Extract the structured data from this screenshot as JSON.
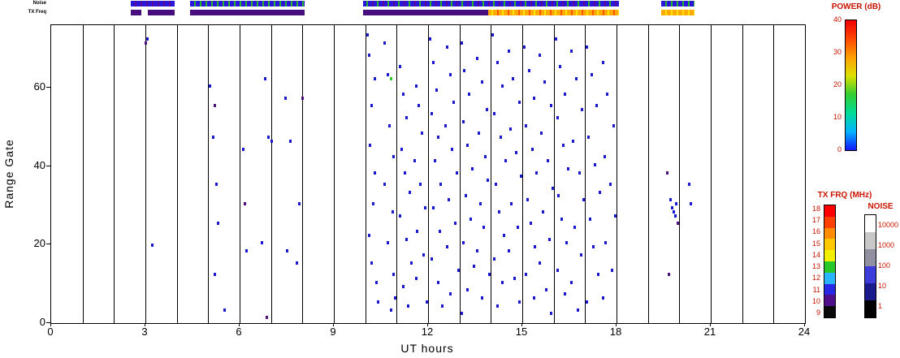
{
  "chart_data": {
    "type": "scatter",
    "title": "",
    "xlabel": "UT hours",
    "ylabel": "Range Gate",
    "xlim": [
      0,
      24
    ],
    "ylim": [
      0,
      76
    ],
    "xticks": [
      0,
      3,
      6,
      9,
      12,
      15,
      18,
      21,
      24
    ],
    "yticks": [
      0,
      20,
      40,
      60
    ],
    "grid": "vertical-line-every-hour",
    "point_palette": [
      "#1a1acd",
      "#50107e",
      "#2fca2f"
    ],
    "points": [
      [
        3.0,
        71,
        1
      ],
      [
        3.05,
        72,
        0
      ],
      [
        3.2,
        19.5,
        0
      ],
      [
        5.05,
        60,
        0
      ],
      [
        5.15,
        47,
        0
      ],
      [
        5.2,
        55,
        1
      ],
      [
        5.2,
        12,
        0
      ],
      [
        5.25,
        35,
        0
      ],
      [
        5.3,
        25,
        0
      ],
      [
        5.5,
        3,
        0
      ],
      [
        6.1,
        44,
        0
      ],
      [
        6.15,
        30,
        1
      ],
      [
        6.2,
        18,
        0
      ],
      [
        6.7,
        20,
        0
      ],
      [
        6.8,
        62,
        0
      ],
      [
        6.85,
        1,
        1
      ],
      [
        6.9,
        47,
        0
      ],
      [
        7.0,
        46,
        0
      ],
      [
        7.45,
        57,
        0
      ],
      [
        7.5,
        18,
        0
      ],
      [
        7.6,
        46,
        0
      ],
      [
        7.8,
        15,
        0
      ],
      [
        7.9,
        30,
        0
      ],
      [
        8.0,
        57,
        1
      ],
      [
        10.05,
        73,
        0
      ],
      [
        10.1,
        68,
        0
      ],
      [
        10.1,
        22,
        0
      ],
      [
        10.15,
        45,
        0
      ],
      [
        10.2,
        55,
        0
      ],
      [
        10.2,
        15,
        0
      ],
      [
        10.25,
        30,
        0
      ],
      [
        10.3,
        38,
        0
      ],
      [
        10.3,
        62,
        0
      ],
      [
        10.35,
        10,
        0
      ],
      [
        10.4,
        5,
        0
      ],
      [
        10.6,
        71,
        0
      ],
      [
        10.6,
        35,
        0
      ],
      [
        10.7,
        63,
        0
      ],
      [
        10.7,
        20,
        0
      ],
      [
        10.75,
        50,
        0
      ],
      [
        10.8,
        62,
        2
      ],
      [
        10.8,
        3,
        0
      ],
      [
        10.85,
        28,
        0
      ],
      [
        10.9,
        42,
        0
      ],
      [
        10.9,
        12,
        0
      ],
      [
        10.95,
        6,
        0
      ],
      [
        11.1,
        65,
        0
      ],
      [
        11.1,
        27,
        0
      ],
      [
        11.15,
        44,
        0
      ],
      [
        11.2,
        58,
        0
      ],
      [
        11.2,
        9,
        0
      ],
      [
        11.25,
        38,
        0
      ],
      [
        11.3,
        52,
        0
      ],
      [
        11.3,
        21,
        0
      ],
      [
        11.35,
        4,
        0
      ],
      [
        11.4,
        33,
        0
      ],
      [
        11.45,
        15,
        0
      ],
      [
        11.55,
        41,
        0
      ],
      [
        11.6,
        60,
        0
      ],
      [
        11.6,
        11,
        0
      ],
      [
        11.65,
        23,
        0
      ],
      [
        11.7,
        55,
        0
      ],
      [
        11.75,
        35,
        0
      ],
      [
        11.8,
        48,
        0
      ],
      [
        11.85,
        17,
        0
      ],
      [
        11.9,
        29,
        0
      ],
      [
        11.95,
        5,
        0
      ],
      [
        12.05,
        72,
        0
      ],
      [
        12.1,
        53,
        0
      ],
      [
        12.1,
        16,
        0
      ],
      [
        12.15,
        66,
        0
      ],
      [
        12.15,
        29,
        0
      ],
      [
        12.2,
        41,
        0
      ],
      [
        12.25,
        59,
        0
      ],
      [
        12.3,
        47,
        0
      ],
      [
        12.3,
        10,
        0
      ],
      [
        12.35,
        23,
        0
      ],
      [
        12.4,
        35,
        0
      ],
      [
        12.45,
        4,
        0
      ],
      [
        12.55,
        50,
        0
      ],
      [
        12.6,
        70,
        0
      ],
      [
        12.6,
        19,
        0
      ],
      [
        12.65,
        31,
        0
      ],
      [
        12.7,
        63,
        0
      ],
      [
        12.7,
        7,
        0
      ],
      [
        12.75,
        44,
        0
      ],
      [
        12.8,
        56,
        0
      ],
      [
        12.85,
        25,
        0
      ],
      [
        12.9,
        38,
        0
      ],
      [
        12.95,
        13,
        0
      ],
      [
        13.05,
        71,
        0
      ],
      [
        13.05,
        2,
        0
      ],
      [
        13.1,
        51,
        0
      ],
      [
        13.1,
        20,
        0
      ],
      [
        13.15,
        64,
        0
      ],
      [
        13.2,
        32,
        0
      ],
      [
        13.25,
        45,
        0
      ],
      [
        13.25,
        8,
        0
      ],
      [
        13.3,
        58,
        0
      ],
      [
        13.35,
        26,
        0
      ],
      [
        13.4,
        39,
        0
      ],
      [
        13.45,
        14,
        0
      ],
      [
        13.55,
        67,
        0
      ],
      [
        13.55,
        18,
        0
      ],
      [
        13.6,
        48,
        0
      ],
      [
        13.65,
        30,
        0
      ],
      [
        13.7,
        61,
        0
      ],
      [
        13.7,
        6,
        0
      ],
      [
        13.75,
        24,
        0
      ],
      [
        13.8,
        42,
        0
      ],
      [
        13.85,
        54,
        0
      ],
      [
        13.9,
        36,
        0
      ],
      [
        13.95,
        12,
        0
      ],
      [
        14.05,
        73,
        0
      ],
      [
        14.1,
        53,
        0
      ],
      [
        14.1,
        16,
        0
      ],
      [
        14.15,
        35,
        0
      ],
      [
        14.2,
        66,
        0
      ],
      [
        14.2,
        4,
        0
      ],
      [
        14.25,
        28,
        0
      ],
      [
        14.3,
        47,
        0
      ],
      [
        14.35,
        60,
        0
      ],
      [
        14.35,
        10,
        0
      ],
      [
        14.4,
        22,
        0
      ],
      [
        14.45,
        41,
        0
      ],
      [
        14.55,
        69,
        0
      ],
      [
        14.55,
        18,
        0
      ],
      [
        14.6,
        49,
        0
      ],
      [
        14.65,
        30,
        0
      ],
      [
        14.7,
        62,
        0
      ],
      [
        14.75,
        11,
        0
      ],
      [
        14.8,
        43,
        0
      ],
      [
        14.85,
        24,
        0
      ],
      [
        14.9,
        56,
        0
      ],
      [
        14.9,
        5,
        0
      ],
      [
        14.95,
        37,
        0
      ],
      [
        15.05,
        70,
        0
      ],
      [
        15.1,
        50,
        0
      ],
      [
        15.1,
        12,
        0
      ],
      [
        15.15,
        31,
        0
      ],
      [
        15.2,
        64,
        0
      ],
      [
        15.25,
        25,
        0
      ],
      [
        15.3,
        44,
        0
      ],
      [
        15.35,
        57,
        0
      ],
      [
        15.35,
        6,
        0
      ],
      [
        15.4,
        19,
        0
      ],
      [
        15.45,
        38,
        0
      ],
      [
        15.55,
        68,
        0
      ],
      [
        15.55,
        15,
        0
      ],
      [
        15.6,
        48,
        0
      ],
      [
        15.65,
        28,
        0
      ],
      [
        15.7,
        61,
        0
      ],
      [
        15.75,
        8,
        0
      ],
      [
        15.8,
        41,
        0
      ],
      [
        15.85,
        21,
        0
      ],
      [
        15.9,
        55,
        0
      ],
      [
        15.9,
        2,
        0
      ],
      [
        15.95,
        34,
        0
      ],
      [
        16.05,
        72,
        0
      ],
      [
        16.1,
        52,
        0
      ],
      [
        16.1,
        13,
        0
      ],
      [
        16.15,
        32,
        0
      ],
      [
        16.2,
        65,
        0
      ],
      [
        16.25,
        26,
        0
      ],
      [
        16.3,
        45,
        0
      ],
      [
        16.35,
        58,
        0
      ],
      [
        16.35,
        7,
        0
      ],
      [
        16.4,
        20,
        0
      ],
      [
        16.45,
        39,
        0
      ],
      [
        16.55,
        69,
        0
      ],
      [
        16.55,
        10,
        0
      ],
      [
        16.6,
        46,
        0
      ],
      [
        16.65,
        24,
        0
      ],
      [
        16.7,
        62,
        0
      ],
      [
        16.75,
        3,
        0
      ],
      [
        16.8,
        38,
        0
      ],
      [
        16.85,
        17,
        0
      ],
      [
        16.9,
        54,
        0
      ],
      [
        16.95,
        31,
        0
      ],
      [
        17.05,
        70,
        0
      ],
      [
        17.05,
        5,
        0
      ],
      [
        17.1,
        47,
        0
      ],
      [
        17.15,
        26,
        0
      ],
      [
        17.2,
        63,
        0
      ],
      [
        17.25,
        19,
        0
      ],
      [
        17.3,
        40,
        0
      ],
      [
        17.35,
        55,
        0
      ],
      [
        17.4,
        12,
        0
      ],
      [
        17.45,
        33,
        0
      ],
      [
        17.55,
        66,
        0
      ],
      [
        17.55,
        6,
        0
      ],
      [
        17.6,
        42,
        0
      ],
      [
        17.65,
        20,
        0
      ],
      [
        17.7,
        58,
        0
      ],
      [
        17.8,
        35,
        0
      ],
      [
        17.85,
        13,
        0
      ],
      [
        17.9,
        50,
        0
      ],
      [
        17.95,
        27,
        0
      ],
      [
        19.6,
        38,
        1
      ],
      [
        19.65,
        12,
        1
      ],
      [
        19.7,
        31,
        0
      ],
      [
        19.75,
        29,
        0
      ],
      [
        19.8,
        28,
        0
      ],
      [
        19.85,
        27,
        0
      ],
      [
        19.9,
        30,
        0
      ],
      [
        19.95,
        25,
        1
      ],
      [
        20.3,
        35,
        0
      ],
      [
        20.35,
        30,
        0
      ]
    ],
    "strips": {
      "noise": {
        "label": "Noise",
        "segments": [
          {
            "start": 2.55,
            "end": 3.95,
            "colors": [
              "#2a16d8",
              "#5a0a9a"
            ]
          },
          {
            "start": 4.45,
            "end": 8.1,
            "colors": [
              "#2a16d8",
              "#28b428"
            ]
          },
          {
            "start": 9.95,
            "end": 18.1,
            "colors": [
              "#2a16d8",
              "#28b428",
              "#5a0a9a"
            ]
          },
          {
            "start": 19.45,
            "end": 20.5,
            "colors": [
              "#2a16d8",
              "#28b428"
            ]
          }
        ]
      },
      "tx_freq": {
        "label": "TX Freq",
        "segments": [
          {
            "start": 2.55,
            "end": 2.9,
            "colors": [
              "#470c7e"
            ]
          },
          {
            "start": 3.1,
            "end": 3.95,
            "colors": [
              "#470c7e"
            ]
          },
          {
            "start": 4.45,
            "end": 8.1,
            "colors": [
              "#470c7e"
            ]
          },
          {
            "start": 9.95,
            "end": 13.95,
            "colors": [
              "#470c7e"
            ]
          },
          {
            "start": 13.95,
            "end": 18.1,
            "colors": [
              "#ffaa00",
              "#ffe400",
              "#ff5500"
            ]
          },
          {
            "start": 19.45,
            "end": 20.5,
            "colors": [
              "#ffaa00",
              "#ffe400"
            ]
          }
        ]
      }
    },
    "colorbars": {
      "power": {
        "title": "POWER (dB)",
        "min": 0,
        "max": 40,
        "ticks": [
          0,
          10,
          20,
          30,
          40
        ],
        "gradient_bottom_to_top": [
          "#1414ff",
          "#00b4ff",
          "#00dc96",
          "#32cd32",
          "#dce100",
          "#ffa000",
          "#ff4600",
          "#f00000"
        ]
      },
      "tx_frq": {
        "title": "TX FRQ (MHz)",
        "tick_labels_top_to_bottom": [
          "18",
          "17",
          "16",
          "15",
          "14",
          "13",
          "12",
          "11",
          "10",
          "9"
        ],
        "blocks_top_to_bottom": [
          "#ff0000",
          "#ff4000",
          "#ff8c00",
          "#ffc800",
          "#f0f000",
          "#28c828",
          "#28b4ff",
          "#2828e6",
          "#50108c",
          "#0a0a0a"
        ]
      },
      "noise": {
        "title": "NOISE",
        "tick_labels_top_to_bottom": [
          "10000",
          "1000",
          "100",
          "10",
          "1"
        ],
        "blocks_top_to_bottom": [
          "#ffffff",
          "#c8c8c8",
          "#9090a0",
          "#3c3cdc",
          "#1a1a8c",
          "#000000"
        ]
      }
    }
  }
}
